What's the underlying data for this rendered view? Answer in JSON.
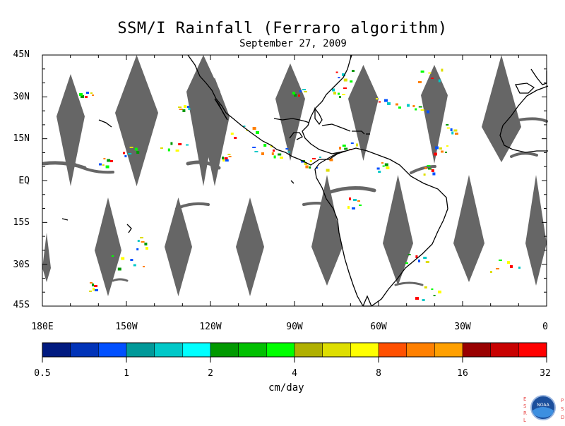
{
  "title": "SSM/I Rainfall (Ferraro algorithm)",
  "subtitle": "September 27, 2009",
  "latitude_labels": [
    "45N",
    "30N",
    "15N",
    "EQ",
    "15S",
    "30S",
    "45S"
  ],
  "longitude_labels": [
    "180E",
    "150W",
    "120W",
    "90W",
    "60W",
    "30W",
    "0"
  ],
  "colorbar": {
    "tick_labels": [
      "0.5",
      "1",
      "2",
      "4",
      "8",
      "16",
      "32"
    ],
    "unit": "cm/day",
    "colors": [
      "#001a80",
      "#0033b8",
      "#0050ff",
      "#009999",
      "#00c8c8",
      "#00ffff",
      "#009900",
      "#00c000",
      "#00ff00",
      "#b0b000",
      "#dede00",
      "#ffff00",
      "#ff5000",
      "#ff8000",
      "#ffa000",
      "#990000",
      "#c80000",
      "#ff0000"
    ]
  },
  "map": {
    "extent": {
      "lon_min": -180,
      "lon_max": 0,
      "lat_min": -45,
      "lat_max": 45
    },
    "no_data_color": "#666666",
    "coastline_color": "#000000"
  },
  "logo": {
    "left_letters": "ESRL",
    "right_letters": "PSD",
    "center_text": "NOAA",
    "accent_color": "#e84a4a"
  }
}
